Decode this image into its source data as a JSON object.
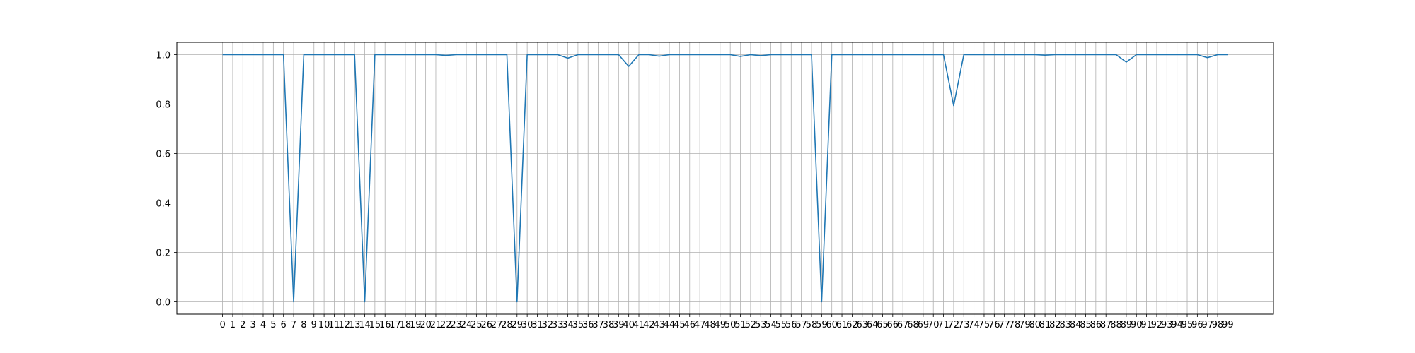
{
  "chart_data": {
    "type": "line",
    "title": "",
    "xlabel": "",
    "ylabel": "",
    "grid": true,
    "legend": "none",
    "x": [
      0,
      1,
      2,
      3,
      4,
      5,
      6,
      7,
      8,
      9,
      10,
      11,
      12,
      13,
      14,
      15,
      16,
      17,
      18,
      19,
      20,
      21,
      22,
      23,
      24,
      25,
      26,
      27,
      28,
      29,
      30,
      31,
      32,
      33,
      34,
      35,
      36,
      37,
      38,
      39,
      40,
      41,
      42,
      43,
      44,
      45,
      46,
      47,
      48,
      49,
      50,
      51,
      52,
      53,
      54,
      55,
      56,
      57,
      58,
      59,
      60,
      61,
      62,
      63,
      64,
      65,
      66,
      67,
      68,
      69,
      70,
      71,
      72,
      73,
      74,
      75,
      76,
      77,
      78,
      79,
      80,
      81,
      82,
      83,
      84,
      85,
      86,
      87,
      88,
      89,
      90,
      91,
      92,
      93,
      94,
      95,
      96,
      97,
      98,
      99
    ],
    "xticks": [
      "0",
      "1",
      "2",
      "3",
      "4",
      "5",
      "6",
      "7",
      "8",
      "9",
      "10",
      "11",
      "12",
      "13",
      "14",
      "15",
      "16",
      "17",
      "18",
      "19",
      "20",
      "21",
      "22",
      "23",
      "24",
      "25",
      "26",
      "27",
      "28",
      "29",
      "30",
      "31",
      "32",
      "33",
      "34",
      "35",
      "36",
      "37",
      "38",
      "39",
      "40",
      "41",
      "42",
      "43",
      "44",
      "45",
      "46",
      "47",
      "48",
      "49",
      "50",
      "51",
      "52",
      "53",
      "54",
      "55",
      "56",
      "57",
      "58",
      "59",
      "60",
      "61",
      "62",
      "63",
      "64",
      "65",
      "66",
      "67",
      "68",
      "69",
      "70",
      "71",
      "72",
      "73",
      "74",
      "75",
      "76",
      "77",
      "78",
      "79",
      "80",
      "81",
      "82",
      "83",
      "84",
      "85",
      "86",
      "87",
      "88",
      "89",
      "90",
      "91",
      "92",
      "93",
      "94",
      "95",
      "96",
      "97",
      "98",
      "99"
    ],
    "yticks": [
      "0.0",
      "0.2",
      "0.4",
      "0.6",
      "0.8",
      "1.0"
    ],
    "ylim": [
      -0.05,
      1.05
    ],
    "xlim": [
      -4.5,
      103.5
    ],
    "series": [
      {
        "name": "",
        "color": "#1f77b4",
        "values": [
          1.0,
          1.0,
          1.0,
          1.0,
          1.0,
          1.0,
          1.0,
          0.0,
          1.0,
          1.0,
          1.0,
          1.0,
          1.0,
          1.0,
          0.0,
          1.0,
          1.0,
          1.0,
          1.0,
          1.0,
          1.0,
          1.0,
          0.997,
          1.0,
          1.0,
          1.0,
          1.0,
          1.0,
          1.0,
          0.0,
          1.0,
          1.0,
          1.0,
          1.0,
          0.986,
          1.0,
          1.0,
          1.0,
          1.0,
          1.0,
          0.953,
          1.0,
          1.0,
          0.994,
          1.0,
          1.0,
          1.0,
          1.0,
          1.0,
          1.0,
          1.0,
          0.993,
          1.0,
          0.996,
          1.0,
          1.0,
          1.0,
          1.0,
          1.0,
          0.0,
          1.0,
          1.0,
          1.0,
          1.0,
          1.0,
          1.0,
          1.0,
          1.0,
          1.0,
          1.0,
          1.0,
          1.0,
          0.794,
          1.0,
          1.0,
          1.0,
          1.0,
          1.0,
          1.0,
          1.0,
          1.0,
          0.998,
          1.0,
          1.0,
          1.0,
          1.0,
          1.0,
          1.0,
          1.0,
          0.97,
          1.0,
          1.0,
          1.0,
          1.0,
          1.0,
          1.0,
          1.0,
          0.988,
          1.0,
          1.0
        ]
      }
    ]
  }
}
